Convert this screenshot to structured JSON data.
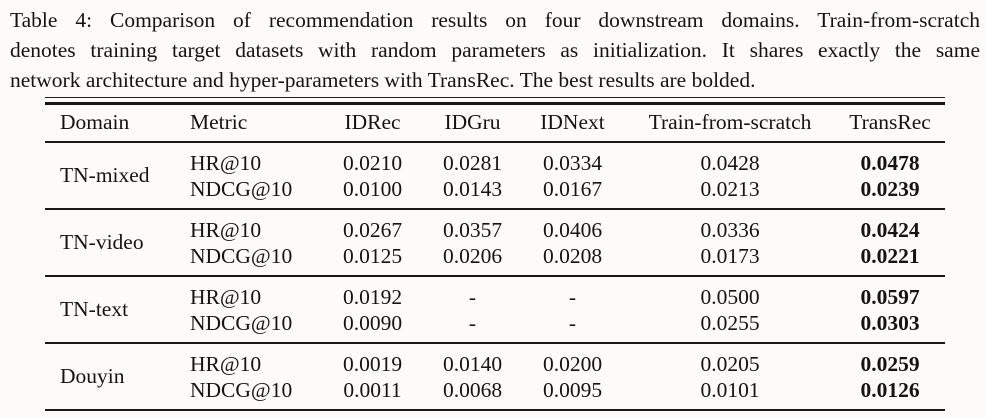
{
  "caption": {
    "lines": [
      "Table 4: Comparison of recommendation results on four downstream domains. Train-from-scratch",
      "denotes training target datasets with random parameters as initialization. It shares exactly the same",
      "network architecture and hyper-parameters with TransRec. The best results are bolded."
    ]
  },
  "table": {
    "headers": [
      "Domain",
      "Metric",
      "IDRec",
      "IDGru",
      "IDNext",
      "Train-from-scratch",
      "TransRec"
    ],
    "emphasis": {
      "bold_column": "TransRec",
      "note": "best results bolded"
    },
    "groups": [
      {
        "domain": "TN-mixed",
        "rows": [
          {
            "metric": "HR@10",
            "values": [
              "0.0210",
              "0.0281",
              "0.0334",
              "0.0428",
              "0.0478"
            ]
          },
          {
            "metric": "NDCG@10",
            "values": [
              "0.0100",
              "0.0143",
              "0.0167",
              "0.0213",
              "0.0239"
            ]
          }
        ]
      },
      {
        "domain": "TN-video",
        "rows": [
          {
            "metric": "HR@10",
            "values": [
              "0.0267",
              "0.0357",
              "0.0406",
              "0.0336",
              "0.0424"
            ]
          },
          {
            "metric": "NDCG@10",
            "values": [
              "0.0125",
              "0.0206",
              "0.0208",
              "0.0173",
              "0.0221"
            ]
          }
        ]
      },
      {
        "domain": "TN-text",
        "rows": [
          {
            "metric": "HR@10",
            "values": [
              "0.0192",
              "-",
              "-",
              "0.0500",
              "0.0597"
            ]
          },
          {
            "metric": "NDCG@10",
            "values": [
              "0.0090",
              "-",
              "-",
              "0.0255",
              "0.0303"
            ]
          }
        ]
      },
      {
        "domain": "Douyin",
        "rows": [
          {
            "metric": "HR@10",
            "values": [
              "0.0019",
              "0.0140",
              "0.0200",
              "0.0205",
              "0.0259"
            ]
          },
          {
            "metric": "NDCG@10",
            "values": [
              "0.0011",
              "0.0068",
              "0.0095",
              "0.0101",
              "0.0126"
            ]
          }
        ]
      }
    ]
  },
  "colors": {
    "background": "#fcfbf8",
    "text": "#141414",
    "rule": "#181818"
  }
}
